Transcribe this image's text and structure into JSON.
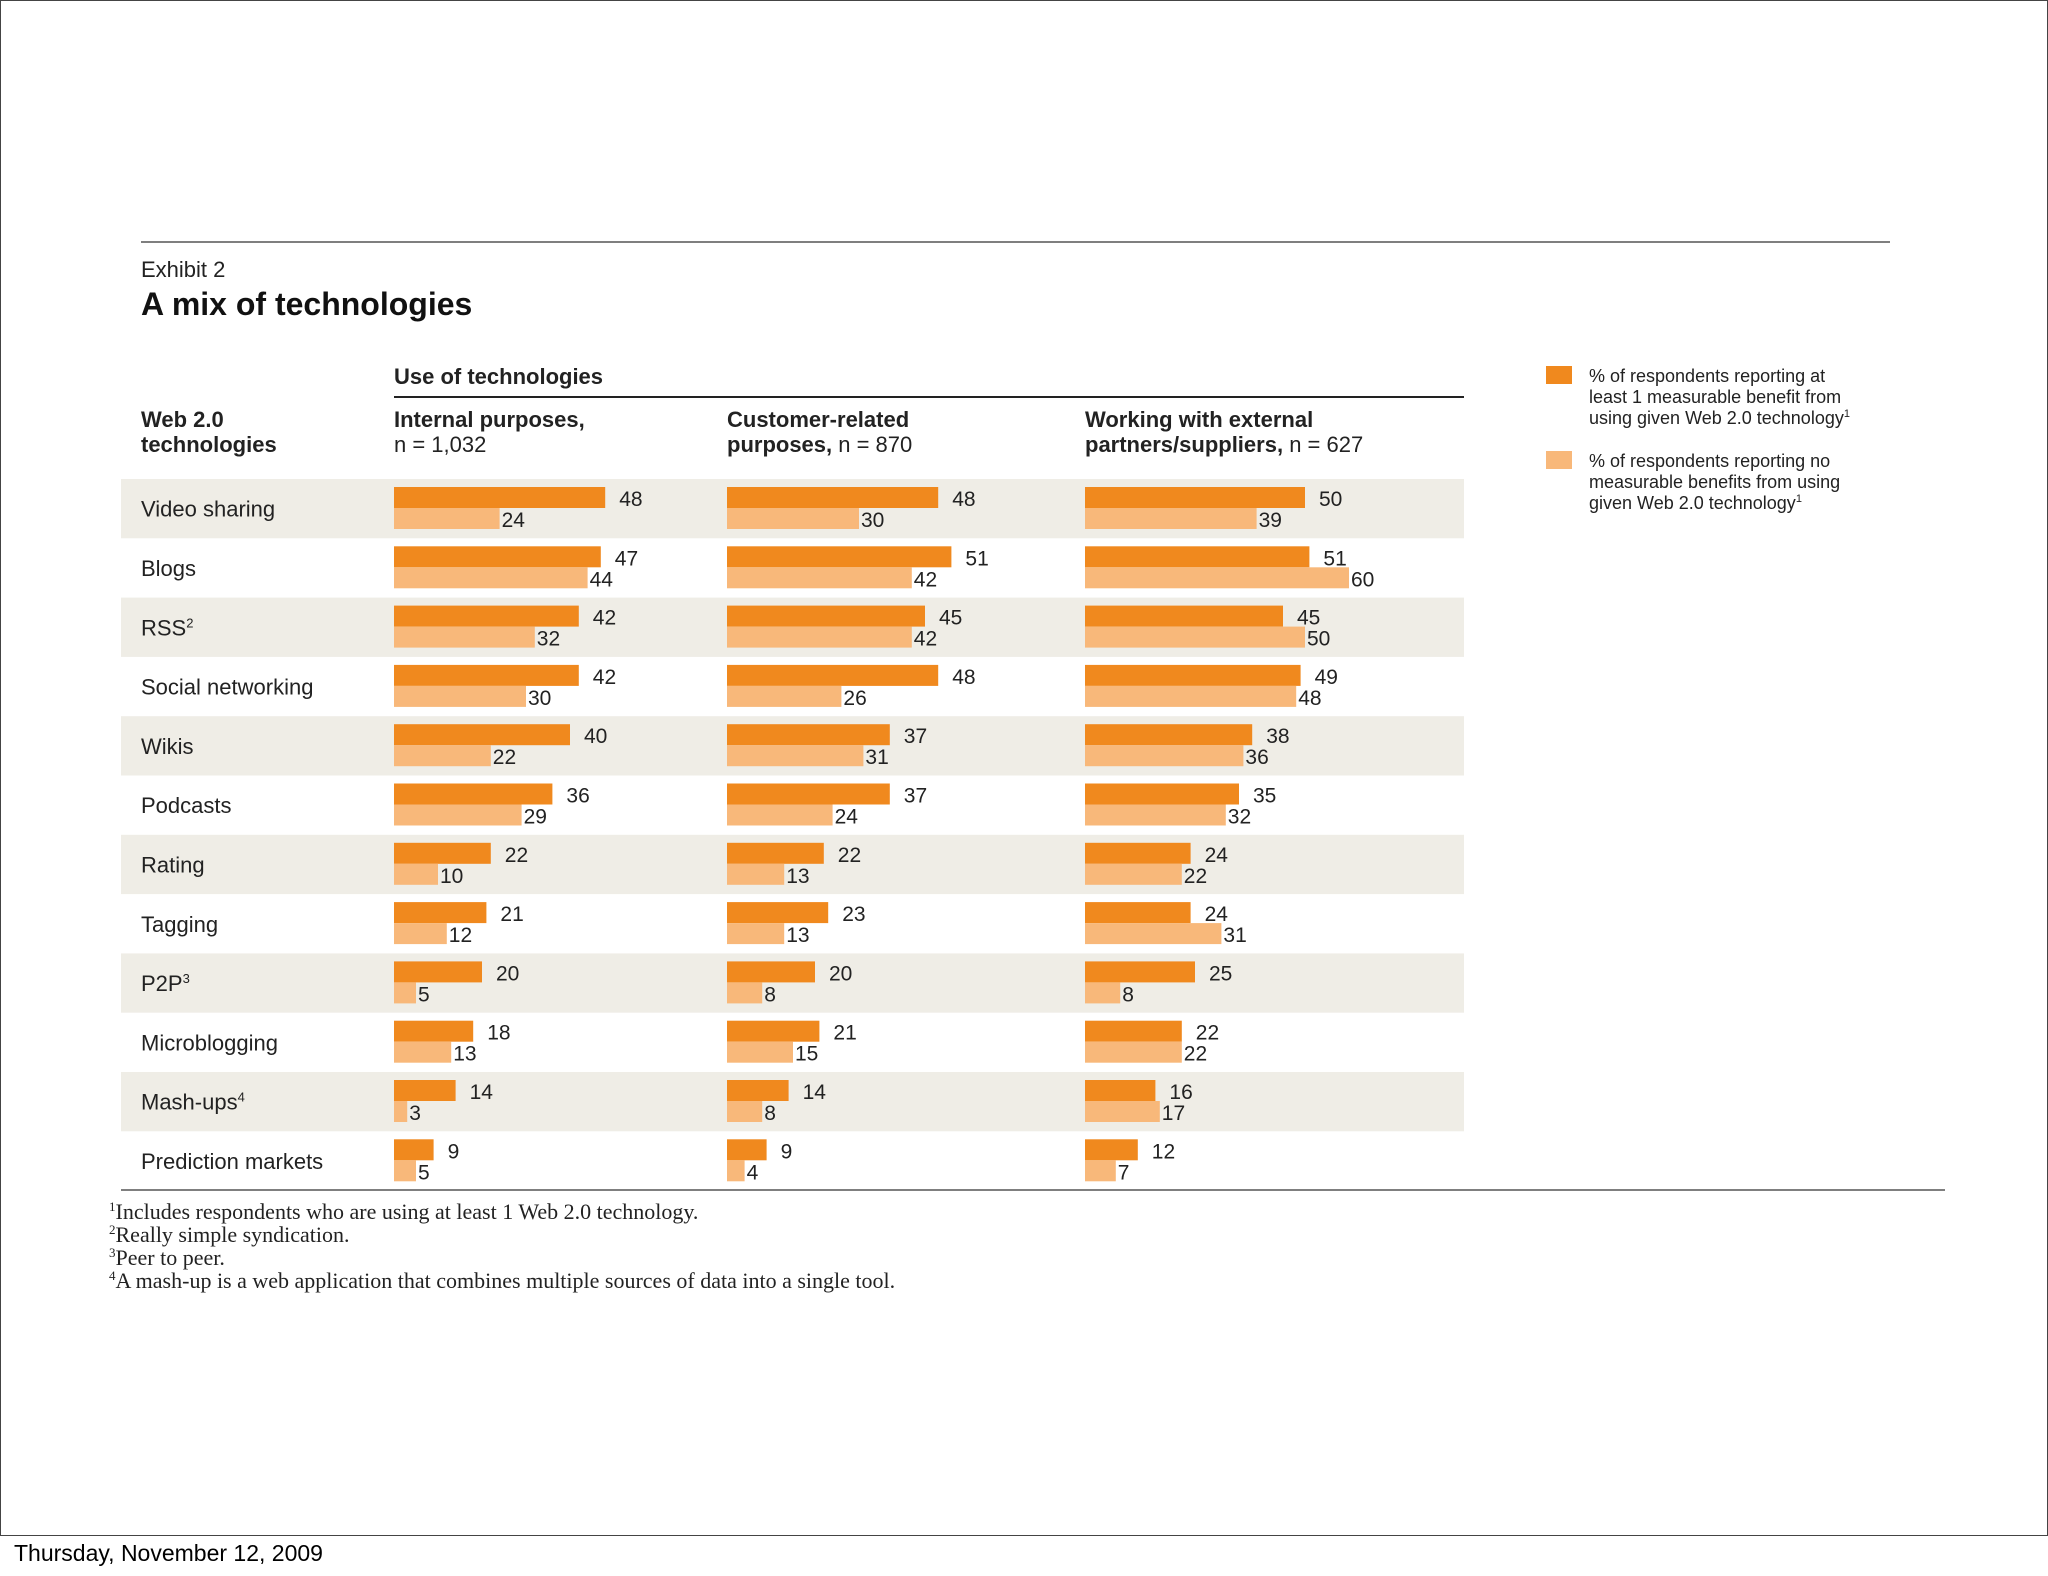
{
  "footer": {
    "date": "Thursday, November 12, 2009"
  },
  "chart_data": {
    "type": "bar",
    "orientation": "horizontal",
    "exhibit": "Exhibit 2",
    "title": "A mix of technologies",
    "group_header": "Use of technologies",
    "row_header": [
      "Web 2.0",
      "technologies"
    ],
    "panels": [
      {
        "title": [
          "Internal purposes,",
          "n = 1,032"
        ]
      },
      {
        "title": [
          "Customer-related",
          "purposes, n = 870"
        ]
      },
      {
        "title": [
          "Working with external",
          "partners/suppliers, n = 627"
        ]
      }
    ],
    "categories": [
      {
        "label": "Video sharing",
        "sup": ""
      },
      {
        "label": "Blogs",
        "sup": ""
      },
      {
        "label": "RSS",
        "sup": "2"
      },
      {
        "label": "Social networking",
        "sup": ""
      },
      {
        "label": "Wikis",
        "sup": ""
      },
      {
        "label": "Podcasts",
        "sup": ""
      },
      {
        "label": "Rating",
        "sup": ""
      },
      {
        "label": "Tagging",
        "sup": ""
      },
      {
        "label": "P2P",
        "sup": "3"
      },
      {
        "label": "Microblogging",
        "sup": ""
      },
      {
        "label": "Mash-ups",
        "sup": "4"
      },
      {
        "label": "Prediction markets",
        "sup": ""
      }
    ],
    "series": [
      {
        "name": "% of respondents reporting at least 1 measurable benefit from using given Web 2.0 technology",
        "legend_lines": [
          "% of respondents reporting at",
          "least 1 measurable benefit from",
          "using given Web 2.0 technology"
        ],
        "legend_sup": "1",
        "color": "#f0891e",
        "values": [
          [
            48,
            47,
            42,
            42,
            40,
            36,
            22,
            21,
            20,
            18,
            14,
            9
          ],
          [
            48,
            51,
            45,
            48,
            37,
            37,
            22,
            23,
            20,
            21,
            14,
            9
          ],
          [
            50,
            51,
            45,
            49,
            38,
            35,
            24,
            24,
            25,
            22,
            16,
            12
          ]
        ]
      },
      {
        "name": "% of respondents reporting no measurable benefits from using given Web 2.0 technology",
        "legend_lines": [
          "% of respondents reporting no",
          "measurable benefits from using",
          "given Web 2.0 technology"
        ],
        "legend_sup": "1",
        "color": "#f8b87a",
        "values": [
          [
            24,
            44,
            32,
            30,
            22,
            29,
            10,
            12,
            5,
            13,
            3,
            5
          ],
          [
            30,
            42,
            42,
            26,
            31,
            24,
            13,
            13,
            8,
            15,
            8,
            4
          ],
          [
            39,
            60,
            50,
            48,
            36,
            32,
            22,
            31,
            8,
            22,
            17,
            7
          ]
        ]
      }
    ],
    "band_color": "#efede6",
    "footnotes": [
      {
        "sup": "1",
        "text": "Includes respondents who are using at least 1 Web 2.0 technology."
      },
      {
        "sup": "2",
        "text": "Really simple syndication."
      },
      {
        "sup": "3",
        "text": "Peer to peer."
      },
      {
        "sup": "4",
        "text": "A mash-up is a web application that combines multiple sources of data into a single tool."
      }
    ]
  }
}
